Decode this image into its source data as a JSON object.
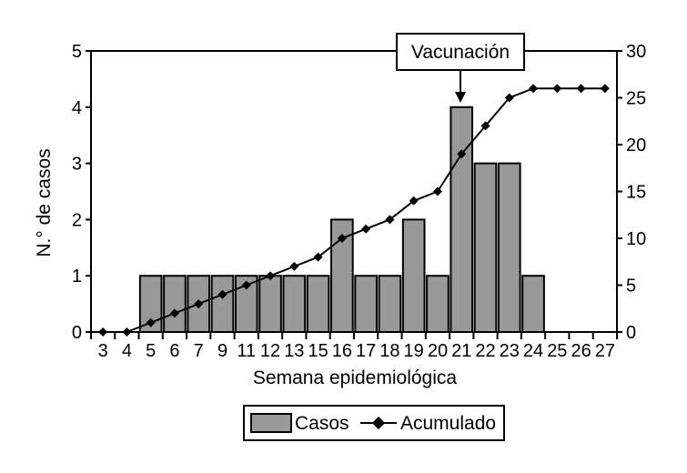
{
  "chart_data": {
    "type": "bar",
    "categories": [
      "3",
      "4",
      "5",
      "6",
      "7",
      "9",
      "11",
      "12",
      "13",
      "15",
      "16",
      "17",
      "18",
      "19",
      "20",
      "21",
      "22",
      "23",
      "24",
      "25",
      "26",
      "27"
    ],
    "series": [
      {
        "name": "Casos",
        "type": "bar",
        "axis": "left",
        "values": [
          0,
          0,
          1,
          1,
          1,
          1,
          1,
          1,
          1,
          1,
          2,
          1,
          1,
          2,
          1,
          4,
          3,
          3,
          1,
          0,
          0,
          0
        ]
      },
      {
        "name": "Acumulado",
        "type": "line",
        "axis": "right",
        "values": [
          0,
          0,
          1,
          2,
          3,
          4,
          5,
          6,
          7,
          8,
          10,
          11,
          12,
          14,
          15,
          19,
          22,
          25,
          26,
          26,
          26,
          26
        ]
      }
    ],
    "xlabel": "Semana epidemiológica",
    "ylabel": "N.° de casos",
    "ylim": [
      0,
      5
    ],
    "y2lim": [
      0,
      30
    ],
    "yticks": [
      "0",
      "1",
      "2",
      "3",
      "4",
      "5"
    ],
    "y2ticks": [
      "0",
      "5",
      "10",
      "15",
      "20",
      "25",
      "30"
    ],
    "annotation": {
      "text": "Vacunación",
      "category": "21"
    },
    "legend": {
      "position": "bottom-center",
      "entries": [
        "Casos",
        "Acumulado"
      ]
    },
    "grid": false,
    "colors": {
      "bar": "#999999",
      "line": "#000000"
    }
  }
}
